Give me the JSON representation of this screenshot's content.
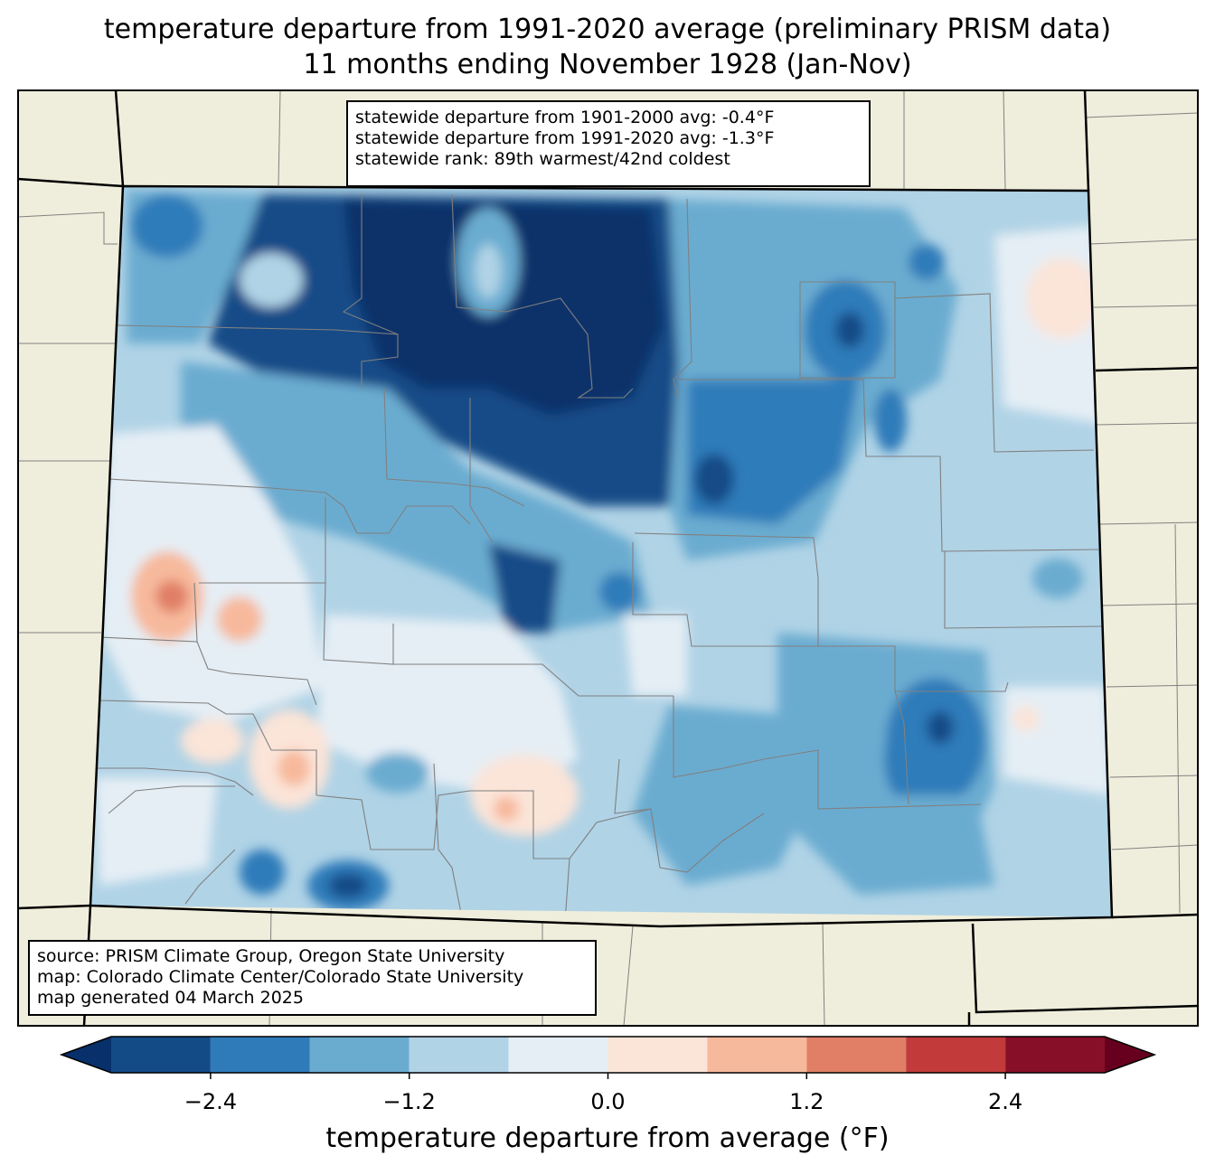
{
  "title": {
    "line1": "temperature departure from 1991-2020 average (preliminary PRISM data)",
    "line2": "11 months ending November 1928 (Jan-Nov)"
  },
  "stats_box": {
    "line1": "statewide departure from 1901-2000 avg: -0.4°F",
    "line2": "statewide departure from 1991-2020 avg: -1.3°F",
    "line3": "statewide rank: 89th warmest/42nd coldest"
  },
  "source_box": {
    "line1": "source: PRISM Climate Group, Oregon State University",
    "line2": "map: Colorado Climate Center/Colorado State University",
    "line3": "map generated 04 March 2025"
  },
  "colorbar": {
    "label": "temperature departure from average (°F)",
    "ticks": [
      "−2.4",
      "−1.2",
      "0.0",
      "1.2",
      "2.4"
    ],
    "bins": [
      -3.0,
      -2.4,
      -1.8,
      -1.2,
      -0.6,
      0.0,
      0.6,
      1.2,
      1.8,
      2.4,
      3.0
    ],
    "colors": [
      "#08306b",
      "#134b87",
      "#2f7bba",
      "#6aacd0",
      "#b0d3e6",
      "#e5eef5",
      "#fbe4d8",
      "#f7b99c",
      "#e07f66",
      "#c23a3a",
      "#870f27",
      "#67001f"
    ]
  },
  "map_colors": {
    "land": "#efeedc",
    "state_border": "#000000",
    "county_line": "#808080"
  }
}
